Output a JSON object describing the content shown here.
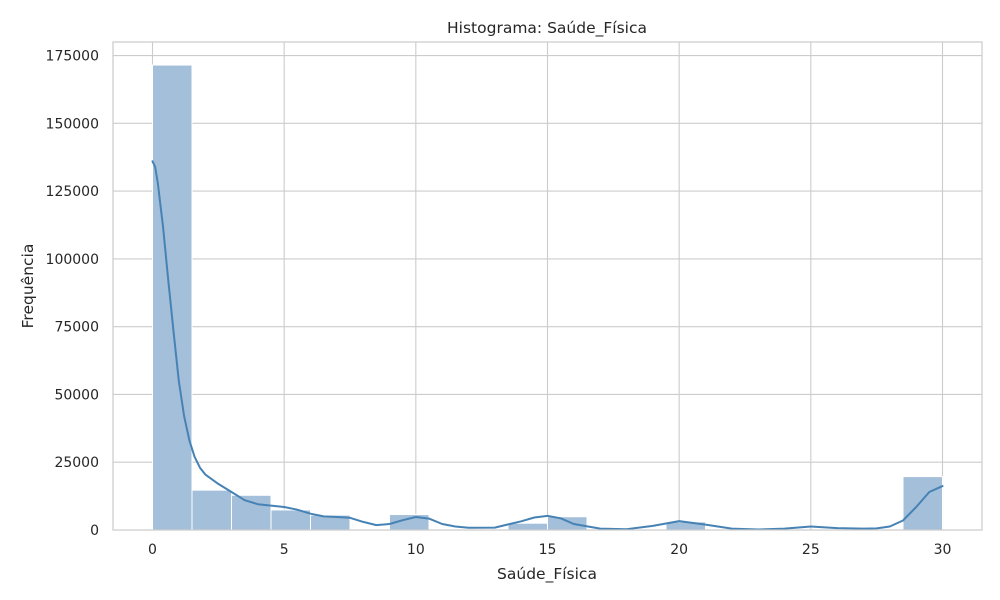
{
  "chart_data": {
    "type": "bar",
    "title": "Histograma: Saúde_Física",
    "xlabel": "Saúde_Física",
    "ylabel": "Frequência",
    "xlim": [
      -1.5,
      31.5
    ],
    "ylim": [
      0,
      180000
    ],
    "xticks": [
      0,
      5,
      10,
      15,
      20,
      25,
      30
    ],
    "yticks": [
      0,
      25000,
      50000,
      75000,
      100000,
      125000,
      150000,
      175000
    ],
    "grid": true,
    "bin_width": 1.5,
    "bins": [
      {
        "x0": 0.0,
        "x1": 1.5,
        "value": 171500
      },
      {
        "x0": 1.5,
        "x1": 3.0,
        "value": 14700
      },
      {
        "x0": 3.0,
        "x1": 4.5,
        "value": 12800
      },
      {
        "x0": 4.5,
        "x1": 6.0,
        "value": 7400
      },
      {
        "x0": 6.0,
        "x1": 7.5,
        "value": 5500
      },
      {
        "x0": 7.5,
        "x1": 9.0,
        "value": 0
      },
      {
        "x0": 9.0,
        "x1": 10.5,
        "value": 5700
      },
      {
        "x0": 10.5,
        "x1": 12.0,
        "value": 0
      },
      {
        "x0": 12.0,
        "x1": 13.5,
        "value": 0
      },
      {
        "x0": 13.5,
        "x1": 15.0,
        "value": 2500
      },
      {
        "x0": 15.0,
        "x1": 16.5,
        "value": 4900
      },
      {
        "x0": 16.5,
        "x1": 18.0,
        "value": 0
      },
      {
        "x0": 18.0,
        "x1": 19.5,
        "value": 0
      },
      {
        "x0": 19.5,
        "x1": 21.0,
        "value": 3000
      },
      {
        "x0": 21.0,
        "x1": 22.5,
        "value": 0
      },
      {
        "x0": 22.5,
        "x1": 24.0,
        "value": 0
      },
      {
        "x0": 24.0,
        "x1": 25.5,
        "value": 0
      },
      {
        "x0": 25.5,
        "x1": 27.0,
        "value": 0
      },
      {
        "x0": 27.0,
        "x1": 28.5,
        "value": 0
      },
      {
        "x0": 28.5,
        "x1": 30.0,
        "value": 19700
      }
    ],
    "kde": {
      "x": [
        0,
        0.1,
        0.2,
        0.4,
        0.6,
        0.8,
        1.0,
        1.2,
        1.4,
        1.6,
        1.8,
        2.0,
        2.5,
        3.0,
        3.5,
        4.0,
        4.5,
        5.0,
        5.5,
        6.0,
        6.5,
        7.0,
        7.5,
        8.0,
        8.5,
        9.0,
        9.5,
        10.0,
        10.5,
        11.0,
        11.5,
        12.0,
        13.0,
        14.0,
        14.5,
        15.0,
        15.5,
        16.0,
        17.0,
        18.0,
        19.0,
        20.0,
        21.0,
        22.0,
        23.0,
        24.0,
        25.0,
        26.0,
        27.0,
        27.5,
        28.0,
        28.5,
        29.0,
        29.5,
        30.0
      ],
      "y": [
        136000,
        134000,
        128000,
        112000,
        92000,
        73000,
        55000,
        42000,
        33000,
        27000,
        23000,
        20500,
        17000,
        14000,
        11000,
        9500,
        9000,
        8500,
        7500,
        6000,
        5000,
        4800,
        4500,
        3000,
        1800,
        2200,
        3600,
        4800,
        4200,
        2200,
        1300,
        800,
        900,
        3200,
        4600,
        5200,
        4300,
        2200,
        500,
        300,
        1500,
        3300,
        2000,
        500,
        200,
        500,
        1300,
        700,
        500,
        600,
        1300,
        3500,
        8500,
        14000,
        16200
      ]
    },
    "colors": {
      "bar_fill": "#a4bfda",
      "bar_edge": "#ffffff",
      "kde_line": "#4682b4",
      "grid": "#cccccc",
      "spine": "#cccccc",
      "text": "#262626"
    }
  }
}
